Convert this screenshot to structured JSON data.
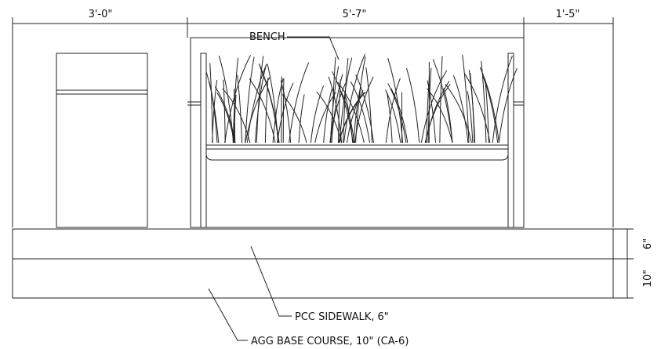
{
  "dimensions": {
    "top": [
      "3'-0\"",
      "5'-7\"",
      "1'-5\""
    ],
    "right": [
      "6\"",
      "10\""
    ]
  },
  "labels": {
    "bench": "BENCH",
    "sidewalk": "PCC SIDEWALK, 6\"",
    "base": "AGG BASE COURSE, 10\" (CA-6)"
  }
}
